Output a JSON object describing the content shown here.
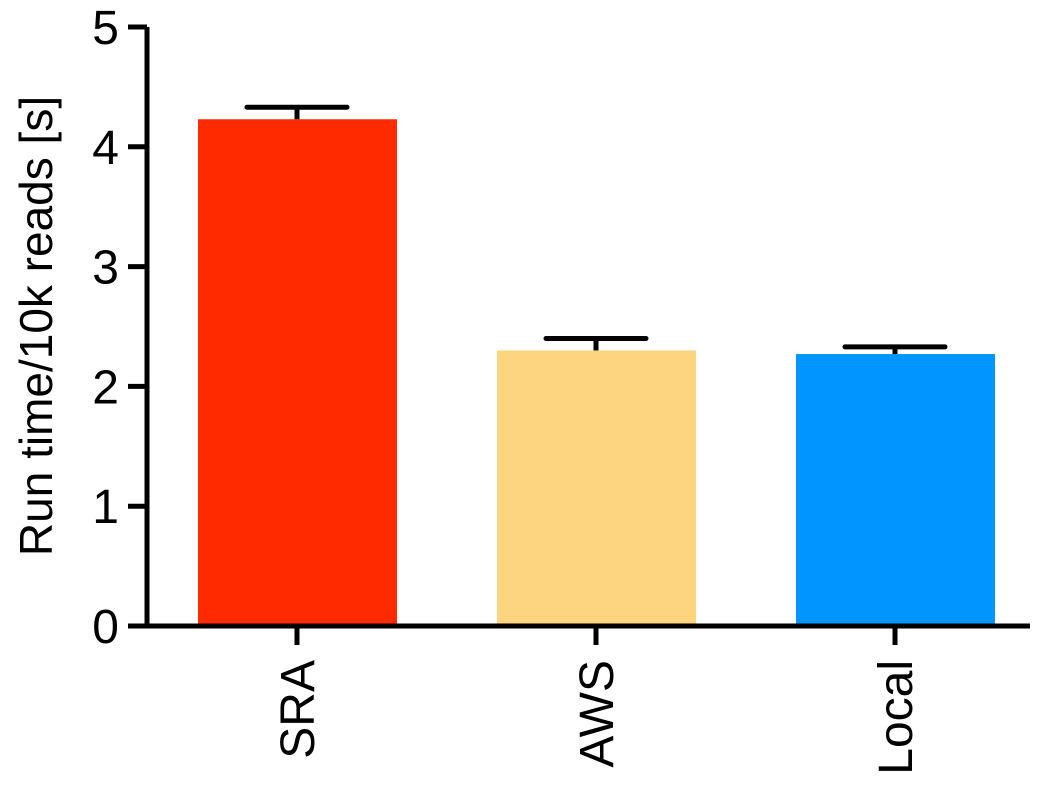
{
  "chart_data": {
    "type": "bar",
    "y_label": "Run time/10k reads [s]",
    "categories": [
      "SRA",
      "AWS",
      "Local"
    ],
    "values": [
      4.23,
      2.3,
      2.27
    ],
    "errors": [
      0.1,
      0.1,
      0.06
    ],
    "colors": [
      "#ff2a00",
      "#fcd57e",
      "#0095ff"
    ],
    "ylim": [
      0,
      5
    ],
    "yticks": [
      0,
      1,
      2,
      3,
      4,
      5
    ],
    "grid": false
  }
}
